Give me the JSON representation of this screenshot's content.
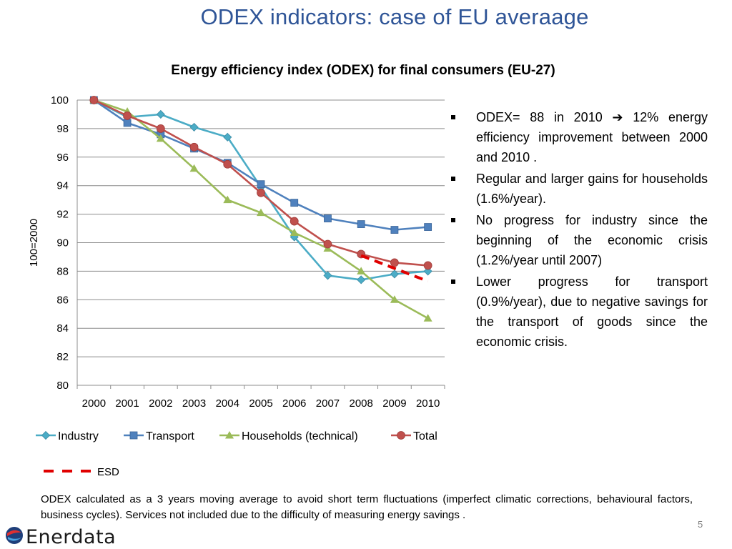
{
  "slide": {
    "title": "ODEX indicators: case of EU averaage",
    "page_number": "5",
    "footnote": "ODEX calculated as a 3 years moving average to avoid short term fluctuations (imperfect climatic corrections, behavioural factors, business cycles). Services not included due to the difficulty of measuring energy savings .",
    "logo_text": "Enerdata"
  },
  "bullets": [
    {
      "before_arrow": "ODEX=  88 in  2010 ",
      "arrow": "➔",
      "after_arrow": " 12% energy efficiency improvement between 2000 and 2010 ."
    },
    {
      "text": "Regular and larger gains for households (1.6%/year)."
    },
    {
      "text": "No progress for industry since the beginning of the economic crisis (1.2%/year until 2007)"
    },
    {
      "text": "Lower progress for transport (0.9%/year), due to negative savings for the transport of goods since the economic crisis."
    }
  ],
  "colors": {
    "title": "#2F5597",
    "industry": "#4BACC6",
    "transport": "#4F81BD",
    "households": "#9BBB59",
    "total": "#C0504D",
    "esd": "#E00000"
  },
  "chart_data": {
    "type": "line",
    "title": "Energy efficiency index (ODEX) for final consumers (EU-27)",
    "xlabel": "",
    "ylabel": "100=2000",
    "ylim": [
      80,
      100
    ],
    "yticks": [
      "100",
      "98",
      "96",
      "94",
      "92",
      "90",
      "88",
      "86",
      "84",
      "82",
      "80"
    ],
    "grid": true,
    "legend_position": "bottom",
    "categories": [
      "2000",
      "2001",
      "2002",
      "2003",
      "2004",
      "2005",
      "2006",
      "2007",
      "2008",
      "2009",
      "2010"
    ],
    "series": [
      {
        "name": "Industry",
        "marker": "diamond",
        "values": [
          100,
          98.8,
          99.0,
          98.1,
          97.4,
          93.9,
          90.4,
          87.7,
          87.4,
          87.8,
          88.0
        ]
      },
      {
        "name": "Transport",
        "marker": "square",
        "values": [
          100,
          98.4,
          97.6,
          96.6,
          95.6,
          94.1,
          92.8,
          91.7,
          91.3,
          90.9,
          91.1
        ]
      },
      {
        "name": "Households (technical)",
        "marker": "triangle",
        "values": [
          100,
          99.2,
          97.3,
          95.2,
          93.0,
          92.1,
          90.7,
          89.6,
          88.0,
          86.0,
          84.7
        ]
      },
      {
        "name": "Total",
        "marker": "circle",
        "values": [
          100,
          98.9,
          98.0,
          96.7,
          95.5,
          93.5,
          91.5,
          89.9,
          89.2,
          88.6,
          88.4
        ]
      },
      {
        "name": "ESD",
        "marker": "none",
        "style": "dashed",
        "x": [
          "2008",
          "2010"
        ],
        "values": [
          89.1,
          87.3
        ]
      }
    ]
  }
}
